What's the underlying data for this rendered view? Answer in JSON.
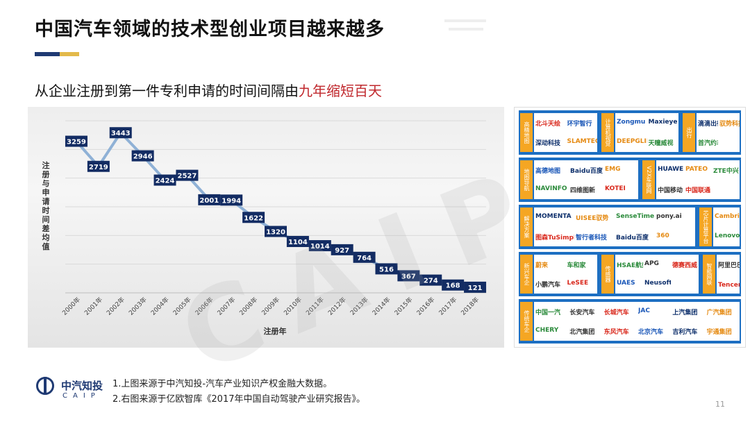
{
  "page": {
    "title": "中国汽车领域的技术型创业项目越来越多",
    "subtitle_prefix": "从企业注册到第一件专利申请的时间间隔由",
    "subtitle_highlight": "九年缩短百天",
    "page_number": "11",
    "brand_cn": "中汽知投",
    "brand_en": "CAIP",
    "watermark": "CAIP",
    "notes": [
      "1.上图来源于中汽知投-汽车产业知识产权金融大数据。",
      "2.右图来源于亿欧智库《2017年中国自动驾驶产业研究报告》。"
    ]
  },
  "colors": {
    "title_bar_navy": "#1f3a73",
    "title_bar_gold": "#e3b94a",
    "highlight_red": "#c0282d",
    "line": "#8fb1d6",
    "marker": "#132c63",
    "logo_panel_blue": "#1d6fc2",
    "category_orange": "#f5a623"
  },
  "chart_data": {
    "type": "line",
    "x": [
      "2000年",
      "2001年",
      "2002年",
      "2003年",
      "2004年",
      "2005年",
      "2006年",
      "2007年",
      "2008年",
      "2009年",
      "2010年",
      "2011年",
      "2012年",
      "2013年",
      "2014年",
      "2015年",
      "2016年",
      "2017年",
      "2018年"
    ],
    "values": [
      3259,
      2719,
      3443,
      2946,
      2424,
      2527,
      2001,
      1994,
      1622,
      1320,
      1104,
      1014,
      927,
      764,
      516,
      367,
      274,
      168,
      121
    ],
    "xlabel": "注册年",
    "ylabel": "注册与申请时间差均值",
    "ylim": [
      0,
      3700
    ],
    "grid": true,
    "data_labels": true
  },
  "logo_panel": {
    "rows": [
      {
        "groups": [
          {
            "category": "高精地图",
            "logos": [
              "北斗天绘",
              "环宇智行",
              "深动科技",
              "SLAMTEC"
            ]
          },
          {
            "category": "计算机视觉",
            "logos": [
              "Zongmu",
              "Maxieye",
              "DEEPGLINT",
              "天瞳威视"
            ]
          },
          {
            "category": "出行",
            "logos": [
              "滴滴出行",
              "驭势科技",
              "首汽约车"
            ]
          }
        ]
      },
      {
        "groups": [
          {
            "category": "地图导航",
            "logos": [
              "高德地图",
              "Baidu百度",
              "EMG",
              "NAVINFO",
              "四维图新",
              "KOTEI"
            ]
          },
          {
            "category": "V2X车联网",
            "logos": [
              "HUAWEI",
              "PATEO",
              "ZTE中兴",
              "中国移动",
              "中国联通"
            ]
          }
        ]
      },
      {
        "groups": [
          {
            "category": "解决方案",
            "logos": [
              "MOMENTA",
              "UISEE驭势",
              "SenseTime",
              "pony.ai",
              "图森TuSimple",
              "智行者科技",
              "Baidu百度",
              "360"
            ]
          },
          {
            "category": "芯片计算平台",
            "logos": [
              "Cambricon",
              "Lenovo"
            ]
          }
        ]
      },
      {
        "groups": [
          {
            "category": "新兴车企",
            "logos": [
              "蔚来",
              "车和家",
              "小鹏汽车",
              "LeSEE"
            ]
          },
          {
            "category": "传感器",
            "logos": [
              "HSAE航盛",
              "APG",
              "德赛西威",
              "UAES",
              "Neusoft"
            ]
          },
          {
            "category": "智能网联",
            "logos": [
              "阿里巴巴",
              "Tencent腾讯"
            ]
          }
        ]
      },
      {
        "groups": [
          {
            "category": "传统车企",
            "logos": [
              "中国一汽",
              "长安汽车",
              "长城汽车",
              "JAC",
              "上汽集团",
              "广汽集团",
              "CHERY",
              "北汽集团",
              "东风汽车",
              "北京汽车",
              "吉利汽车",
              "宇通集团"
            ]
          }
        ]
      }
    ]
  }
}
